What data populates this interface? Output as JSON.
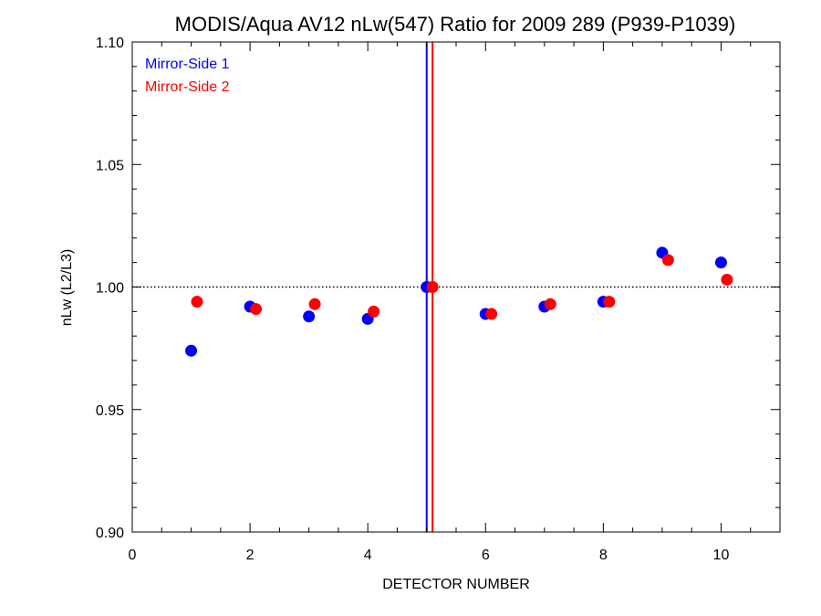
{
  "chart_data": {
    "type": "scatter",
    "title": "MODIS/Aqua AV12 nLw(547) Ratio for 2009 289 (P939-P1039)",
    "xlabel": "DETECTOR NUMBER",
    "ylabel": "nLw (L2/L3)",
    "xlim": [
      0,
      11
    ],
    "ylim": [
      0.9,
      1.1
    ],
    "x_ticks": [
      0,
      2,
      4,
      6,
      8,
      10
    ],
    "y_ticks": [
      0.9,
      0.95,
      1.0,
      1.05,
      1.1
    ],
    "y_tick_labels": [
      "0.90",
      "0.95",
      "1.00",
      "1.05",
      "1.10"
    ],
    "reference_line": 1.0,
    "vertical_lines": [
      {
        "x": 5.0,
        "color": "#0000ff"
      },
      {
        "x": 5.1,
        "color": "#ff0000"
      }
    ],
    "legend_position": "top-left",
    "series": [
      {
        "name": "Mirror-Side 1",
        "color": "#0000ff",
        "x": [
          1,
          2,
          3,
          4,
          5,
          6,
          7,
          8,
          9,
          10
        ],
        "y": [
          0.974,
          0.992,
          0.988,
          0.987,
          1.0,
          0.989,
          0.992,
          0.994,
          1.014,
          1.01
        ]
      },
      {
        "name": "Mirror-Side 2",
        "color": "#ff0000",
        "x": [
          1.1,
          2.1,
          3.1,
          4.1,
          5.1,
          6.1,
          7.1,
          8.1,
          9.1,
          10.1
        ],
        "y": [
          0.994,
          0.991,
          0.993,
          0.99,
          1.0,
          0.989,
          0.993,
          0.994,
          1.011,
          1.003
        ]
      }
    ]
  }
}
